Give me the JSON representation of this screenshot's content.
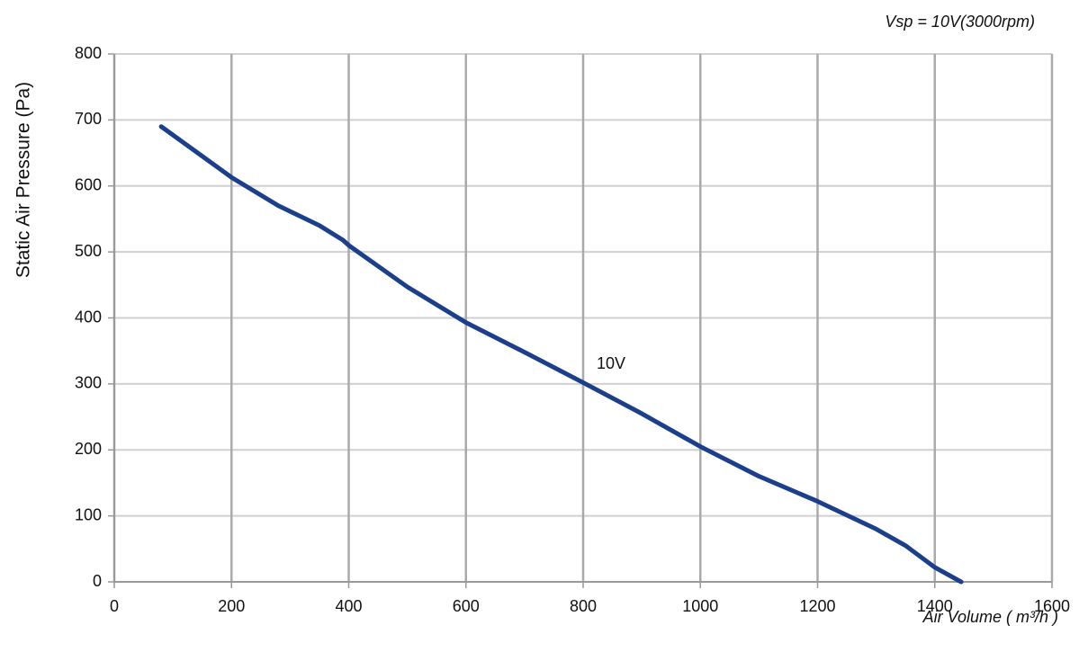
{
  "chart_data": {
    "type": "line",
    "title": "Vsp = 10V(3000rpm)",
    "x_label": "Air Volume ( m³/h )",
    "y_label": "Static Air Pressure  (Pa)",
    "annotation": "10V",
    "x": [
      80,
      200,
      280,
      350,
      390,
      400,
      500,
      600,
      700,
      800,
      900,
      1000,
      1100,
      1200,
      1300,
      1350,
      1400,
      1445
    ],
    "series": [
      {
        "name": "10V",
        "color": "#1c3f8c",
        "values": [
          690,
          613,
          570,
          540,
          518,
          510,
          447,
          393,
          348,
          302,
          255,
          205,
          160,
          122,
          80,
          55,
          22,
          0
        ]
      }
    ],
    "xlim": [
      0,
      1600
    ],
    "xticks": [
      0,
      200,
      400,
      600,
      800,
      1000,
      1200,
      1400,
      1600
    ],
    "ylim": [
      0,
      800
    ],
    "yticks": [
      0,
      100,
      200,
      300,
      400,
      500,
      600,
      700,
      800
    ],
    "grid": true
  }
}
